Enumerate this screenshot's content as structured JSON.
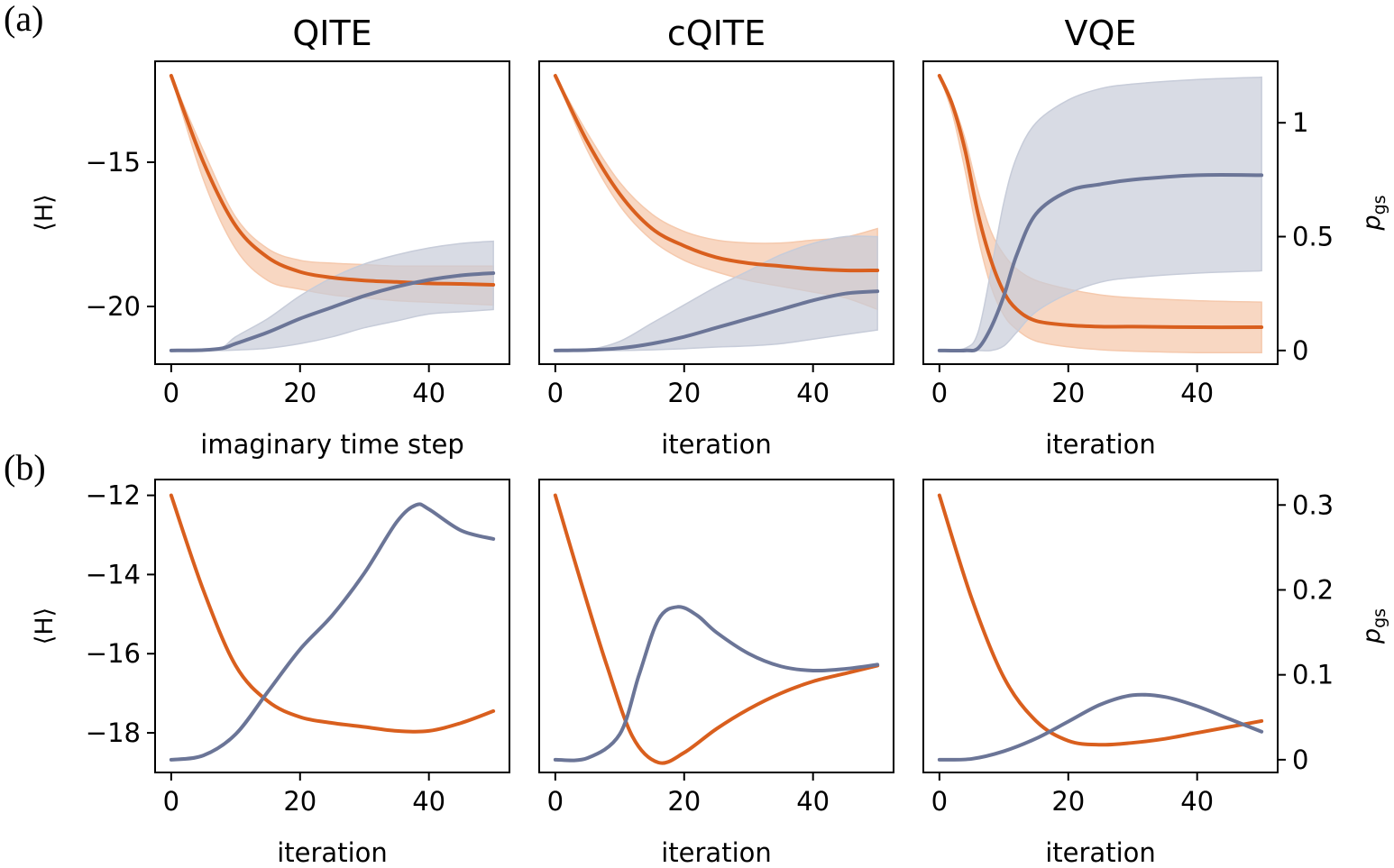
{
  "colors": {
    "energy": "#d95f1e",
    "energy_band": "#f5c9ad",
    "pgs": "#6b7597",
    "pgs_band": "#c7ccd9"
  },
  "panel_labels": [
    "(a)",
    "(b)"
  ],
  "row_axes": {
    "left_ylabel_main": "⟨H⟩",
    "right_ylabel_main": "p",
    "right_ylabel_sub": "gs"
  },
  "chart_data": [
    {
      "type": "line",
      "row": "a",
      "col": 0,
      "title": "QITE",
      "xlabel": "imaginary time step",
      "xlim": [
        -2.5,
        52.5
      ],
      "ylim": [
        -22.0,
        -11.5
      ],
      "y2lim": [
        -0.06,
        1.27
      ],
      "xticks": [
        0,
        20,
        40
      ],
      "yticks": [
        -15,
        -20
      ],
      "y2ticks": [],
      "series": [
        {
          "name": "⟨H⟩",
          "axis": "left",
          "x": [
            0,
            5,
            10,
            15,
            20,
            25,
            30,
            35,
            40,
            45,
            50
          ],
          "y": [
            -12.0,
            -15.0,
            -17.2,
            -18.3,
            -18.8,
            -19.0,
            -19.1,
            -19.15,
            -19.2,
            -19.22,
            -19.25
          ],
          "lower": [
            -12.0,
            -15.6,
            -18.0,
            -19.1,
            -19.4,
            -19.6,
            -19.7,
            -19.8,
            -19.85,
            -19.9,
            -19.95
          ],
          "upper": [
            -12.0,
            -14.6,
            -16.9,
            -18.0,
            -18.4,
            -18.5,
            -18.55,
            -18.6,
            -18.6,
            -18.6,
            -18.6
          ]
        },
        {
          "name": "p_gs",
          "axis": "right",
          "x": [
            0,
            5,
            8,
            10,
            15,
            20,
            25,
            30,
            35,
            40,
            45,
            50
          ],
          "y": [
            0.0,
            0.002,
            0.01,
            0.03,
            0.08,
            0.14,
            0.19,
            0.24,
            0.28,
            0.31,
            0.33,
            0.34
          ],
          "lower": [
            0.0,
            0.0,
            0.0,
            0.002,
            0.01,
            0.03,
            0.06,
            0.1,
            0.13,
            0.16,
            0.17,
            0.18
          ],
          "upper": [
            0.0,
            0.003,
            0.015,
            0.06,
            0.14,
            0.24,
            0.32,
            0.38,
            0.42,
            0.45,
            0.47,
            0.48
          ]
        }
      ]
    },
    {
      "type": "line",
      "row": "a",
      "col": 1,
      "title": "cQITE",
      "xlabel": "iteration",
      "xlim": [
        -2.5,
        52.5
      ],
      "ylim": [
        -22.0,
        -11.5
      ],
      "y2lim": [
        -0.06,
        1.27
      ],
      "xticks": [
        0,
        20,
        40
      ],
      "yticks": [],
      "y2ticks": [],
      "series": [
        {
          "name": "⟨H⟩",
          "axis": "left",
          "x": [
            0,
            5,
            10,
            15,
            20,
            25,
            30,
            35,
            40,
            45,
            50
          ],
          "y": [
            -12.0,
            -14.3,
            -16.1,
            -17.3,
            -17.9,
            -18.3,
            -18.5,
            -18.6,
            -18.7,
            -18.75,
            -18.75
          ],
          "lower": [
            -12.0,
            -14.6,
            -16.5,
            -17.7,
            -18.4,
            -18.8,
            -19.1,
            -19.3,
            -19.5,
            -19.7,
            -20.1
          ],
          "upper": [
            -12.0,
            -14.0,
            -15.7,
            -16.8,
            -17.4,
            -17.7,
            -17.8,
            -17.8,
            -17.7,
            -17.6,
            -17.3
          ]
        },
        {
          "name": "p_gs",
          "axis": "right",
          "x": [
            0,
            5,
            10,
            15,
            20,
            25,
            30,
            35,
            40,
            45,
            50
          ],
          "y": [
            0.0,
            0.002,
            0.01,
            0.03,
            0.06,
            0.1,
            0.14,
            0.18,
            0.22,
            0.25,
            0.26
          ],
          "lower": [
            0.0,
            0.0,
            0.0,
            0.003,
            0.008,
            0.015,
            0.02,
            0.03,
            0.05,
            0.07,
            0.09
          ],
          "upper": [
            0.0,
            0.003,
            0.04,
            0.12,
            0.2,
            0.28,
            0.35,
            0.42,
            0.47,
            0.5,
            0.5
          ]
        }
      ]
    },
    {
      "type": "line",
      "row": "a",
      "col": 2,
      "title": "VQE",
      "xlabel": "iteration",
      "xlim": [
        -2.5,
        52.5
      ],
      "ylim": [
        -22.0,
        -11.5
      ],
      "y2lim": [
        -0.06,
        1.27
      ],
      "xticks": [
        0,
        20,
        40
      ],
      "yticks": [],
      "y2ticks": [
        0.0,
        0.5,
        1.0
      ],
      "series": [
        {
          "name": "⟨H⟩",
          "axis": "left",
          "x": [
            0,
            2,
            4,
            6,
            8,
            10,
            12,
            15,
            20,
            25,
            30,
            40,
            50
          ],
          "y": [
            -12.0,
            -13.0,
            -14.6,
            -16.8,
            -18.4,
            -19.5,
            -20.1,
            -20.5,
            -20.65,
            -20.7,
            -20.7,
            -20.72,
            -20.72
          ],
          "lower": [
            -12.0,
            -13.3,
            -15.3,
            -17.6,
            -19.3,
            -20.3,
            -20.8,
            -21.2,
            -21.4,
            -21.5,
            -21.55,
            -21.6,
            -21.6
          ],
          "upper": [
            -12.0,
            -12.9,
            -14.2,
            -16.0,
            -17.4,
            -18.2,
            -18.7,
            -19.1,
            -19.4,
            -19.6,
            -19.7,
            -19.8,
            -19.85
          ]
        },
        {
          "name": "p_gs",
          "axis": "right",
          "x": [
            0,
            4,
            6,
            8,
            10,
            12,
            15,
            20,
            25,
            30,
            40,
            50
          ],
          "y": [
            0.0,
            0.0,
            0.01,
            0.1,
            0.24,
            0.42,
            0.6,
            0.7,
            0.73,
            0.75,
            0.77,
            0.77
          ],
          "lower": [
            0.0,
            0.0,
            0.0,
            0.0,
            0.02,
            0.08,
            0.17,
            0.25,
            0.3,
            0.32,
            0.34,
            0.35
          ],
          "upper": [
            0.0,
            0.01,
            0.08,
            0.35,
            0.65,
            0.85,
            1.0,
            1.1,
            1.15,
            1.17,
            1.19,
            1.2
          ]
        }
      ]
    },
    {
      "type": "line",
      "row": "b",
      "col": 0,
      "title": "",
      "xlabel": "iteration",
      "xlim": [
        -2.5,
        52.5
      ],
      "ylim": [
        -19.0,
        -11.6
      ],
      "y2lim": [
        -0.015,
        0.33
      ],
      "xticks": [
        0,
        20,
        40
      ],
      "yticks": [
        -12,
        -14,
        -16,
        -18
      ],
      "y2ticks": [],
      "series": [
        {
          "name": "⟨H⟩",
          "axis": "left",
          "x": [
            0,
            5,
            10,
            15,
            20,
            25,
            30,
            35,
            40,
            45,
            50
          ],
          "y": [
            -12.0,
            -14.4,
            -16.3,
            -17.2,
            -17.6,
            -17.75,
            -17.85,
            -17.95,
            -17.95,
            -17.75,
            -17.45
          ]
        },
        {
          "name": "p_gs",
          "axis": "right",
          "x": [
            0,
            5,
            10,
            15,
            20,
            25,
            30,
            35,
            38,
            40,
            45,
            50
          ],
          "y": [
            0.0,
            0.005,
            0.03,
            0.08,
            0.13,
            0.17,
            0.22,
            0.28,
            0.3,
            0.295,
            0.27,
            0.26
          ]
        }
      ]
    },
    {
      "type": "line",
      "row": "b",
      "col": 1,
      "title": "",
      "xlabel": "iteration",
      "xlim": [
        -2.5,
        52.5
      ],
      "ylim": [
        -19.0,
        -11.6
      ],
      "y2lim": [
        -0.015,
        0.33
      ],
      "xticks": [
        0,
        20,
        40
      ],
      "yticks": [],
      "y2ticks": [],
      "series": [
        {
          "name": "⟨H⟩",
          "axis": "left",
          "x": [
            0,
            4,
            8,
            12,
            16,
            20,
            25,
            30,
            35,
            40,
            45,
            50
          ],
          "y": [
            -12.0,
            -14.2,
            -16.3,
            -18.1,
            -18.75,
            -18.5,
            -17.9,
            -17.4,
            -17.0,
            -16.7,
            -16.5,
            -16.3
          ]
        },
        {
          "name": "p_gs",
          "axis": "right",
          "x": [
            0,
            5,
            10,
            13,
            16,
            19,
            22,
            25,
            30,
            35,
            40,
            45,
            50
          ],
          "y": [
            0.0,
            0.002,
            0.03,
            0.1,
            0.165,
            0.18,
            0.17,
            0.15,
            0.125,
            0.11,
            0.105,
            0.107,
            0.112
          ]
        }
      ]
    },
    {
      "type": "line",
      "row": "b",
      "col": 2,
      "title": "",
      "xlabel": "iteration",
      "xlim": [
        -2.5,
        52.5
      ],
      "ylim": [
        -19.0,
        -11.6
      ],
      "y2lim": [
        -0.015,
        0.33
      ],
      "xticks": [
        0,
        20,
        40
      ],
      "yticks": [],
      "y2ticks": [
        0.0,
        0.1,
        0.2,
        0.3
      ],
      "series": [
        {
          "name": "⟨H⟩",
          "axis": "left",
          "x": [
            0,
            5,
            10,
            15,
            20,
            25,
            30,
            35,
            40,
            45,
            50
          ],
          "y": [
            -12.0,
            -14.6,
            -16.6,
            -17.7,
            -18.2,
            -18.3,
            -18.25,
            -18.15,
            -18.0,
            -17.85,
            -17.7
          ]
        },
        {
          "name": "p_gs",
          "axis": "right",
          "x": [
            0,
            5,
            10,
            15,
            20,
            25,
            30,
            35,
            40,
            45,
            50
          ],
          "y": [
            0.0,
            0.001,
            0.01,
            0.025,
            0.045,
            0.065,
            0.076,
            0.074,
            0.063,
            0.048,
            0.033
          ]
        }
      ]
    }
  ]
}
